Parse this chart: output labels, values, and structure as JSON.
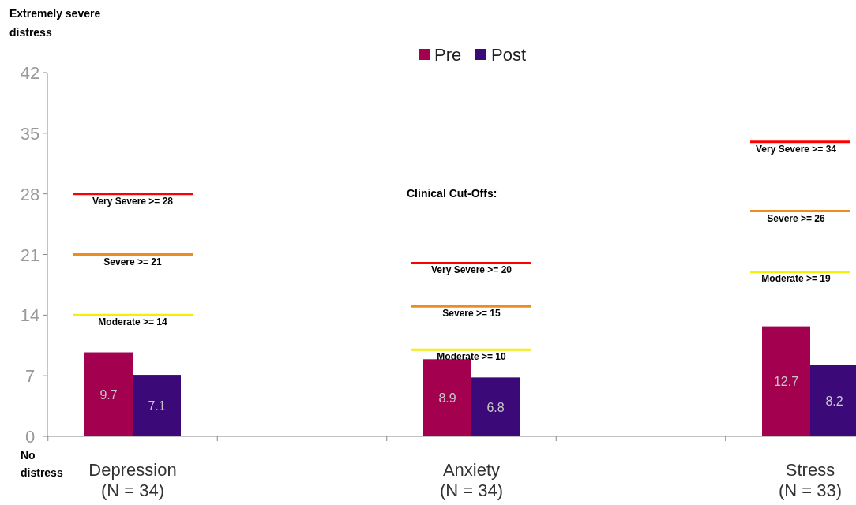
{
  "chart_data": {
    "type": "bar",
    "categories": [
      "Depression\n(N = 34)",
      "Anxiety\n(N = 34)",
      "Stress\n(N = 33)"
    ],
    "series": [
      {
        "name": "Pre",
        "color": "#a3004f",
        "values": [
          9.7,
          8.9,
          12.7
        ]
      },
      {
        "name": "Post",
        "color": "#3b0a78",
        "values": [
          7.1,
          6.8,
          8.2
        ]
      }
    ],
    "ylim": [
      0,
      42
    ],
    "yticks": [
      0,
      7,
      14,
      21,
      28,
      35,
      42
    ],
    "grid": false,
    "legend": "top",
    "data_labels": true,
    "annotations": [
      "Extremely severe distress",
      "No distress",
      "Clinical Cut-Offs:"
    ],
    "ref_lines": [
      {
        "axis": "y",
        "value": 28,
        "label": "Very Severe >= 28",
        "color": "#ff0000"
      },
      {
        "axis": "y",
        "value": 21,
        "label": "Severe >= 21",
        "color": "#f08c1e"
      },
      {
        "axis": "y",
        "value": 14,
        "label": "Moderate >= 14",
        "color": "#f5f000"
      },
      {
        "axis": "y",
        "value": 20,
        "label": "Very Severe >= 20",
        "color": "#ff0000"
      },
      {
        "axis": "y",
        "value": 15,
        "label": "Severe >= 15",
        "color": "#f08c1e"
      },
      {
        "axis": "y",
        "value": 10,
        "label": "Moderate >= 10",
        "color": "#f5f000"
      },
      {
        "axis": "y",
        "value": 34,
        "label": "Very Severe >= 34",
        "color": "#ff0000"
      },
      {
        "axis": "y",
        "value": 26,
        "label": "Severe >= 26",
        "color": "#f08c1e"
      },
      {
        "axis": "y",
        "value": 19,
        "label": "Moderate >= 19",
        "color": "#f5f000"
      }
    ]
  }
}
